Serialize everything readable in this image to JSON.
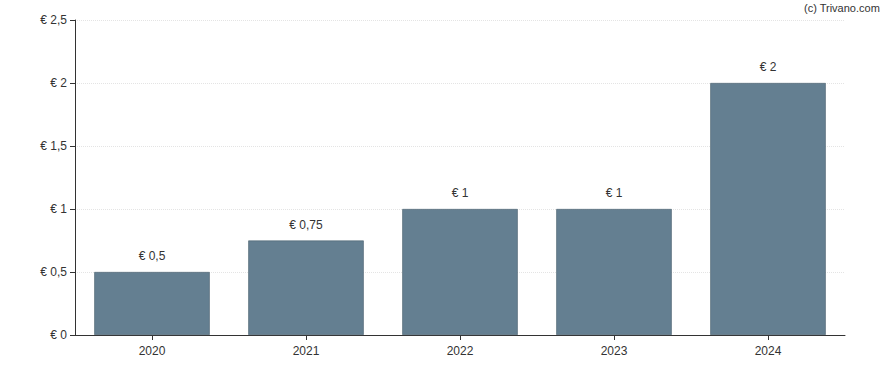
{
  "chart_data": {
    "type": "bar",
    "annotation": "(c) Trivano.com",
    "categories": [
      "2020",
      "2021",
      "2022",
      "2023",
      "2024"
    ],
    "values": [
      0.5,
      0.75,
      1,
      1,
      2
    ],
    "value_labels": [
      "€ 0,5",
      "€ 0,75",
      "€ 1",
      "€ 1",
      "€ 2"
    ],
    "data_labels": true,
    "color": "#647f91",
    "ylim": [
      0,
      2.5
    ],
    "yticks": [
      {
        "value": 0,
        "label": "€ 0"
      },
      {
        "value": 0.5,
        "label": "€ 0,5"
      },
      {
        "value": 1,
        "label": "€ 1"
      },
      {
        "value": 1.5,
        "label": "€ 1,5"
      },
      {
        "value": 2,
        "label": "€ 2"
      },
      {
        "value": 2.5,
        "label": "€ 2,5"
      }
    ],
    "grid": true
  }
}
